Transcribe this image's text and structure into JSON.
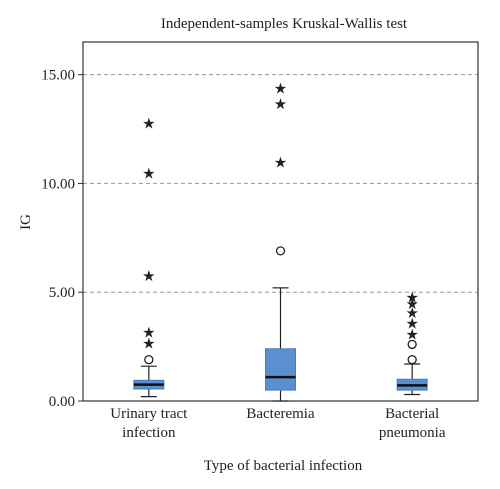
{
  "chart_data": {
    "type": "boxplot",
    "title": "Independent-samples Kruskal-Wallis test",
    "xlabel": "Type of bacterial infection",
    "ylabel": "IG",
    "ylim": [
      0,
      16.5
    ],
    "yticks": [
      "0.00",
      "5.00",
      "10.00",
      "15.00"
    ],
    "ytick_values": [
      0,
      5,
      10,
      15
    ],
    "grid": "horizontal dashed",
    "box_color": "#5b8fd0",
    "categories": [
      {
        "label_lines": [
          "Urinary tract",
          "infection"
        ],
        "whisker_low": 0.2,
        "q1": 0.55,
        "median": 0.75,
        "q3": 0.95,
        "whisker_high": 1.6,
        "outliers": [
          1.9
        ],
        "extremes": [
          2.7,
          3.2,
          5.8,
          10.5,
          12.8
        ]
      },
      {
        "label_lines": [
          "Bacteremia"
        ],
        "whisker_low": 0.0,
        "q1": 0.5,
        "median": 1.1,
        "q3": 2.4,
        "whisker_high": 5.2,
        "outliers": [
          6.9
        ],
        "extremes": [
          11.0,
          13.7,
          14.4
        ]
      },
      {
        "label_lines": [
          "Bacterial",
          "pneumonia"
        ],
        "whisker_low": 0.3,
        "q1": 0.5,
        "median": 0.72,
        "q3": 1.0,
        "whisker_high": 1.7,
        "outliers": [
          1.9,
          2.6
        ],
        "extremes": [
          3.1,
          3.6,
          4.1,
          4.5,
          4.8
        ]
      }
    ]
  }
}
